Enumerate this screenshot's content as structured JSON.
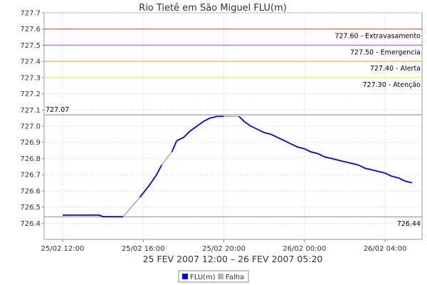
{
  "chart_data": {
    "type": "line",
    "title": "Rio Tietê em São Miguel FLU(m)",
    "subtitle": "25 FEV 2007 12:00 – 26 FEV 2007 05:20",
    "xlabel": "",
    "ylabel": "",
    "ylim": [
      726.3,
      727.7
    ],
    "xlim": [
      "2007-02-25 11:05",
      "2007-02-26 05:50"
    ],
    "x_ticks": [
      {
        "t": "2007-02-25 12:00",
        "label": "25/02 12:00"
      },
      {
        "t": "2007-02-25 16:00",
        "label": "25/02 16:00"
      },
      {
        "t": "2007-02-25 20:00",
        "label": "25/02 20:00"
      },
      {
        "t": "2007-02-26 00:00",
        "label": "26/02 00:00"
      },
      {
        "t": "2007-02-26 04:00",
        "label": "26/02 04:00"
      }
    ],
    "y_ticks": [
      "726.4",
      "726.5",
      "726.6",
      "726.7",
      "726.8",
      "726.9",
      "727.0",
      "727.1",
      "727.2",
      "727.3",
      "727.4",
      "727.5",
      "727.6",
      "727.7"
    ],
    "grid": true,
    "legend_position": "bottom",
    "series": [
      {
        "name": "FLU(m)",
        "color": "#0000ee",
        "segments": [
          [
            [
              "2007-02-25 12:00",
              726.45
            ],
            [
              "2007-02-25 13:50",
              726.45
            ],
            [
              "2007-02-25 14:00",
              726.44
            ],
            [
              "2007-02-25 15:00",
              726.44
            ]
          ],
          [
            [
              "2007-02-25 15:50",
              726.56
            ],
            [
              "2007-02-25 16:20",
              726.64
            ],
            [
              "2007-02-25 16:40",
              726.7
            ],
            [
              "2007-02-25 16:55",
              726.76
            ]
          ],
          [
            [
              "2007-02-25 17:25",
              726.84
            ],
            [
              "2007-02-25 17:40",
              726.91
            ],
            [
              "2007-02-25 18:00",
              726.93
            ],
            [
              "2007-02-25 18:20",
              726.97
            ],
            [
              "2007-02-25 18:40",
              727.0
            ],
            [
              "2007-02-25 19:00",
              727.03
            ],
            [
              "2007-02-25 19:20",
              727.05
            ],
            [
              "2007-02-25 19:40",
              727.06
            ],
            [
              "2007-02-25 20:00",
              727.06
            ]
          ],
          [
            [
              "2007-02-25 20:45",
              727.06
            ],
            [
              "2007-02-25 21:00",
              727.03
            ],
            [
              "2007-02-25 21:20",
              727.0
            ],
            [
              "2007-02-25 21:40",
              726.98
            ],
            [
              "2007-02-25 22:00",
              726.96
            ],
            [
              "2007-02-25 22:20",
              726.95
            ],
            [
              "2007-02-25 22:40",
              726.93
            ],
            [
              "2007-02-25 23:00",
              726.91
            ],
            [
              "2007-02-25 23:20",
              726.89
            ],
            [
              "2007-02-25 23:40",
              726.87
            ],
            [
              "2007-02-26 00:00",
              726.86
            ],
            [
              "2007-02-26 00:20",
              726.84
            ],
            [
              "2007-02-26 00:40",
              726.83
            ],
            [
              "2007-02-26 01:00",
              726.81
            ],
            [
              "2007-02-26 01:20",
              726.8
            ],
            [
              "2007-02-26 01:40",
              726.79
            ],
            [
              "2007-02-26 02:00",
              726.78
            ],
            [
              "2007-02-26 02:20",
              726.77
            ],
            [
              "2007-02-26 02:40",
              726.76
            ],
            [
              "2007-02-26 03:00",
              726.74
            ],
            [
              "2007-02-26 03:20",
              726.73
            ],
            [
              "2007-02-26 03:40",
              726.72
            ],
            [
              "2007-02-26 04:00",
              726.71
            ],
            [
              "2007-02-26 04:20",
              726.69
            ],
            [
              "2007-02-26 04:40",
              726.68
            ],
            [
              "2007-02-26 05:00",
              726.66
            ],
            [
              "2007-02-26 05:20",
              726.65
            ]
          ]
        ]
      },
      {
        "name": "Falha",
        "color": "#b4b4b4",
        "segments": [
          [
            [
              "2007-02-25 15:00",
              726.44
            ],
            [
              "2007-02-25 15:50",
              726.56
            ]
          ],
          [
            [
              "2007-02-25 16:55",
              726.76
            ],
            [
              "2007-02-25 17:25",
              726.84
            ]
          ],
          [
            [
              "2007-02-25 20:00",
              727.06
            ],
            [
              "2007-02-25 20:45",
              727.06
            ]
          ]
        ]
      }
    ],
    "reference_lines": [
      {
        "value": 727.6,
        "label": "727.60 - Extravasamento",
        "color": "#d23a2a",
        "label_side": "right"
      },
      {
        "value": 727.5,
        "label": "727.50 - Emergencia",
        "color": "#b845b8",
        "label_side": "right"
      },
      {
        "value": 727.4,
        "label": "727.40 - Alerta",
        "color": "#f0a020",
        "label_side": "right"
      },
      {
        "value": 727.3,
        "label": "727.30 - Atenção",
        "color": "#f4e02a",
        "label_side": "right"
      },
      {
        "value": 727.07,
        "label": "727.07",
        "color": "#888888",
        "label_side": "left"
      },
      {
        "value": 726.44,
        "label": "726.44",
        "color": "#888888",
        "label_side": "right"
      }
    ]
  }
}
